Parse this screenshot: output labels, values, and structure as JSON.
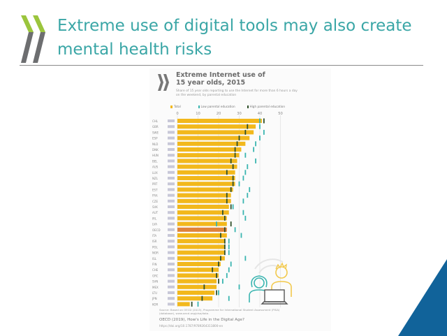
{
  "slide": {
    "title": "Extreme use of digital tools may also create mental health risks",
    "accent": "#3aa6a6",
    "corner_color": "#11639a"
  },
  "figure": {
    "title_line1": "Extreme Internet use of",
    "title_line2": "15 year olds,  2015",
    "subtitle": "Share of 15 year olds reporting to use the Internet for more than 6 hours a day on the weekend, by parental education",
    "source": "Source: Based on OECD (2015), Programme for International Student Assessment (PISA) (database), www.oecd.org/pisa/data.",
    "reference": "OECD (2019), How's Life in the Digital Age?",
    "url": "https://doi.org/10.1787/9789264311800-en"
  },
  "chart_data": {
    "type": "bar",
    "title": "Extreme Internet use of 15 year olds, 2015",
    "orientation": "horizontal",
    "xlim": [
      0,
      50
    ],
    "ticks": [
      "0",
      "10",
      "20",
      "30",
      "40",
      "50"
    ],
    "legend": [
      "Total",
      "Low parental education",
      "High parental education"
    ],
    "colors": {
      "total": "#f2b81c",
      "oecd": "#e0823a",
      "low": "#3ab5b0",
      "high": "#2f4f2a",
      "grid": "#dddddd"
    },
    "categories": [
      "CHL",
      "GBR",
      "SWE",
      "ESP",
      "NLD",
      "DNK",
      "HUN",
      "BEL",
      "AUS",
      "LUX",
      "NZL",
      "PRT",
      "EST",
      "FRA",
      "CZE",
      "SVK",
      "AUT",
      "IRL",
      "LVA",
      "OECD",
      "ITA",
      "ISR",
      "POL",
      "NOR",
      "ISL",
      "FIN",
      "CHE",
      "GRC",
      "SVN",
      "MEX",
      "LTU",
      "JPN",
      "KOR"
    ],
    "series": [
      {
        "name": "Total",
        "values": [
          41,
          38,
          37,
          35,
          33,
          31,
          30,
          29,
          29,
          28,
          28,
          28,
          27,
          26,
          26,
          25,
          25,
          24,
          24,
          24,
          24,
          23,
          23,
          23,
          23,
          21,
          20,
          20,
          19,
          19,
          18,
          17,
          6
        ]
      },
      {
        "name": "Low parental education",
        "values": [
          40,
          40,
          42,
          40,
          38,
          37,
          33,
          38,
          34,
          33,
          32,
          30,
          35,
          34,
          32,
          27,
          32,
          33,
          19,
          28,
          31,
          25,
          25,
          25,
          33,
          26,
          25,
          24,
          22,
          30,
          20,
          25,
          10
        ]
      },
      {
        "name": "High parental education",
        "values": [
          42,
          34,
          33,
          30,
          29,
          28,
          28,
          26,
          27,
          24,
          27,
          27,
          26,
          24,
          24,
          26,
          22,
          23,
          26,
          23,
          21,
          23,
          23,
          23,
          21,
          20,
          17,
          19,
          20,
          13,
          19,
          12,
          7
        ]
      }
    ]
  }
}
